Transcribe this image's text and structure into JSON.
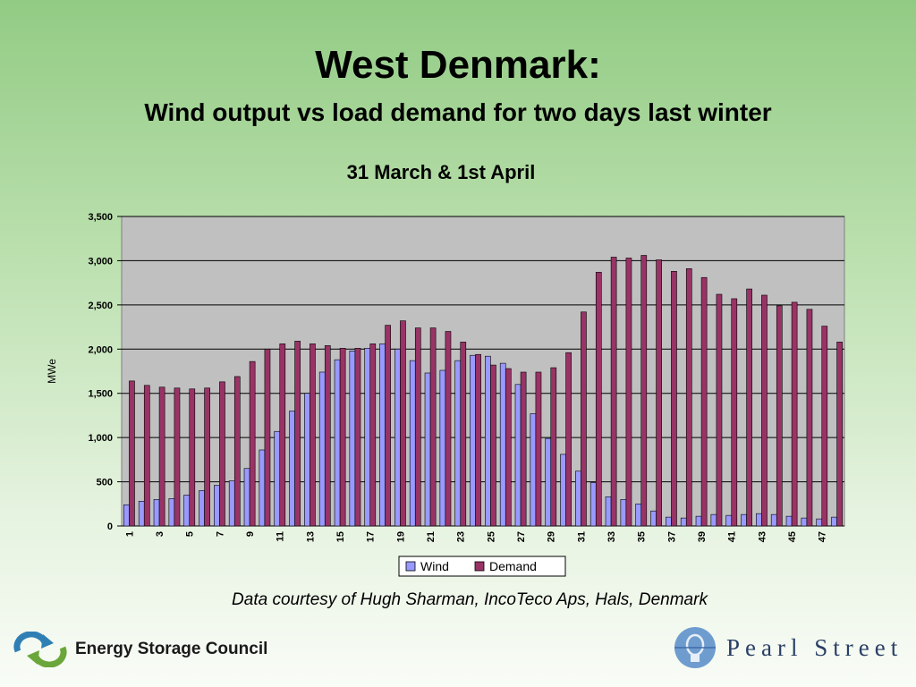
{
  "slide": {
    "title": "West Denmark:",
    "subtitle": "Wind output vs load demand for two days last winter",
    "credit": "Data courtesy of Hugh Sharman, IncoTeco Aps, Hals, Denmark"
  },
  "logos": {
    "left": "Energy Storage Council",
    "right": "Pearl Street"
  },
  "colors": {
    "wind": "#9999ff",
    "demand": "#993366",
    "plot_bg": "#c0c0c0"
  },
  "chart_data": {
    "type": "bar",
    "title": "31 March & 1st April",
    "xlabel": "",
    "ylabel": "MWe",
    "ylim": [
      0,
      3500
    ],
    "yticks": [
      "0",
      "500",
      "1,000",
      "1,500",
      "2,000",
      "2,500",
      "3,000",
      "3,500"
    ],
    "grid": true,
    "legend_position": "bottom",
    "x_tick_labels": [
      "1",
      "3",
      "5",
      "7",
      "9",
      "11",
      "13",
      "15",
      "17",
      "19",
      "21",
      "23",
      "25",
      "27",
      "29",
      "31",
      "33",
      "35",
      "37",
      "39",
      "41",
      "43",
      "45",
      "47"
    ],
    "categories": [
      1,
      2,
      3,
      4,
      5,
      6,
      7,
      8,
      9,
      10,
      11,
      12,
      13,
      14,
      15,
      16,
      17,
      18,
      19,
      20,
      21,
      22,
      23,
      24,
      25,
      26,
      27,
      28,
      29,
      30,
      31,
      32,
      33,
      34,
      35,
      36,
      37,
      38,
      39,
      40,
      41,
      42,
      43,
      44,
      45,
      46,
      47,
      48
    ],
    "series": [
      {
        "name": "Wind",
        "values": [
          240,
          280,
          300,
          310,
          350,
          400,
          460,
          510,
          650,
          860,
          1070,
          1300,
          1500,
          1740,
          1880,
          1980,
          2010,
          2060,
          2000,
          1870,
          1730,
          1760,
          1870,
          1930,
          1920,
          1840,
          1600,
          1270,
          990,
          810,
          620,
          490,
          330,
          300,
          250,
          170,
          100,
          90,
          110,
          130,
          120,
          130,
          140,
          130,
          110,
          90,
          80,
          100
        ]
      },
      {
        "name": "Demand",
        "values": [
          1640,
          1590,
          1570,
          1560,
          1550,
          1560,
          1630,
          1690,
          1860,
          2000,
          2060,
          2090,
          2060,
          2040,
          2010,
          2010,
          2060,
          2270,
          2320,
          2240,
          2240,
          2200,
          2080,
          1940,
          1820,
          1780,
          1740,
          1740,
          1790,
          1960,
          2420,
          2870,
          3040,
          3030,
          3060,
          3010,
          2880,
          2910,
          2810,
          2620,
          2570,
          2680,
          2610,
          2490,
          2530,
          2450,
          2260,
          2080
        ]
      }
    ]
  }
}
